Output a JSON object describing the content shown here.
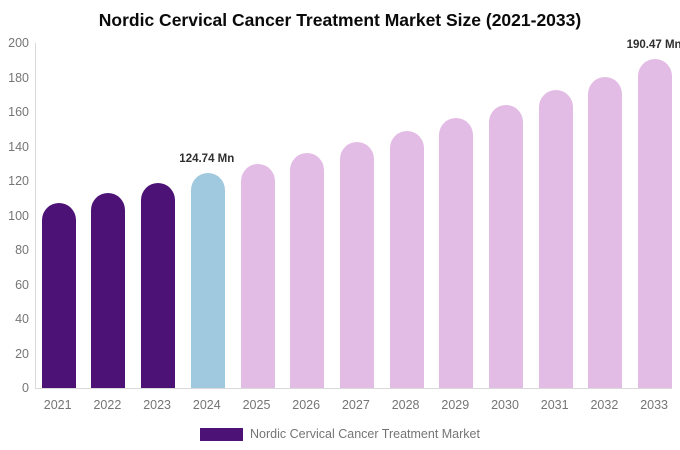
{
  "chart_data": {
    "type": "bar",
    "title": "Nordic Cervical Cancer Treatment Market Size (2021-2033)",
    "categories": [
      "2021",
      "2022",
      "2023",
      "2024",
      "2025",
      "2026",
      "2027",
      "2028",
      "2029",
      "2030",
      "2031",
      "2032",
      "2033"
    ],
    "values": [
      107.5,
      113.0,
      118.8,
      124.74,
      130.1,
      136.1,
      142.4,
      149.3,
      156.4,
      164.2,
      172.6,
      180.6,
      190.47
    ],
    "unit": "Mn",
    "xlabel": "",
    "ylabel": "",
    "ylim": [
      0,
      200
    ],
    "ytick_step": 20,
    "grid": false,
    "legend_position": "bottom",
    "bar_roles": [
      "historical",
      "historical",
      "historical",
      "base_year",
      "forecast",
      "forecast",
      "forecast",
      "forecast",
      "forecast",
      "forecast",
      "forecast",
      "forecast",
      "forecast"
    ],
    "bar_colors": {
      "historical": "#4d1276",
      "base_year": "#a0c8de",
      "forecast": "#e3bce6"
    },
    "annotations": [
      {
        "category": "2024",
        "text": "124.74 Mn"
      },
      {
        "category": "2033",
        "text": "190.47 Mn"
      }
    ],
    "legend": {
      "label": "Nordic Cervical Cancer Treatment Market",
      "swatch_color": "#4d1276"
    },
    "colors": {
      "title_text": "#0a0a0a",
      "axis_line": "#d9d9d9",
      "axis_text": "#757575",
      "annotation_text": "#2f2f2f",
      "background": "#ffffff"
    }
  }
}
